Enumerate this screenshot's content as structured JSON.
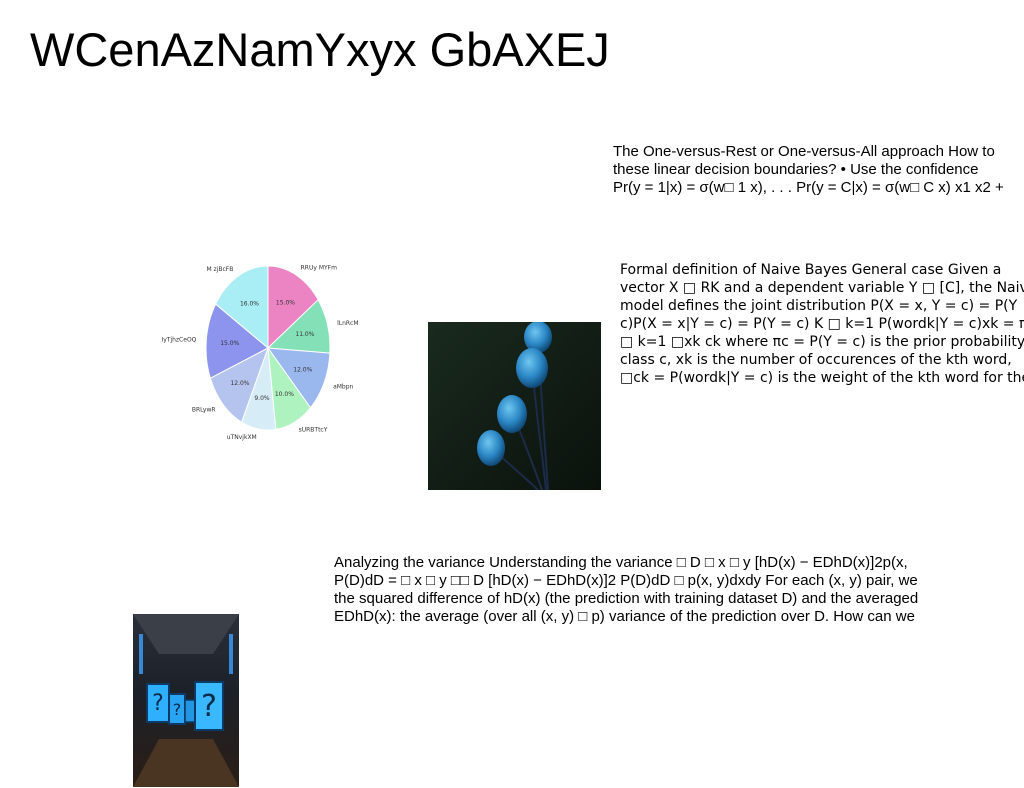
{
  "title": "WCenAzNamYxyx GbAXEJ",
  "paragraphs": {
    "ovr": "The One-versus-Rest or One-versus-All approach How to\nthese linear decision boundaries? • Use the confidence\nPr(y = 1|x) = σ(w□ 1 x), . . . Pr(y = C|x) = σ(w□ C x) x1 x2 +",
    "naive_bayes": "Formal definition of Naive Bayes General case Given a\nvector X □ RK and a dependent variable Y □ [C], the Naive\nmodel defines the joint distribution P(X = x, Y = c) = P(Y\nc)P(X = x|Y = c) = P(Y = c) K □ k=1 P(wordk|Y = c)xk = πc\n□ k=1 □xk ck where πc = P(Y = c) is the prior probability\nclass c, xk is the number of occurences of the kth word,\n□ck = P(wordk|Y = c) is the weight of the kth word for the",
    "variance": "Analyzing the variance Understanding the variance □ D □ x □ y [hD(x) − EDhD(x)]2p(x,\nP(D)dD = □ x □ y □□ D [hD(x) − EDhD(x)]2 P(D)dD □ p(x, y)dxdy For each (x, y) pair, we\nthe squared difference of hD(x) (the prediction with training dataset D) and the averaged\nEDhD(x): the average (over all (x, y) □ p) variance of the prediction over D. How can we"
  },
  "chart_data": {
    "type": "pie",
    "categories": [
      "RRUy MYFm",
      "lLnRcM",
      "aMbpn",
      "sURBTtcY",
      "uTNvjkXM",
      "BRLywR",
      "IyTjhzCeOQ",
      "M zjBcFB"
    ],
    "values": [
      15.0,
      11.0,
      12.0,
      10.0,
      9.0,
      12.0,
      15.0,
      16.0
    ],
    "value_labels": [
      "15.0%",
      "11.0%",
      "12.0%",
      "10.0%",
      "9.0%",
      "12.0%",
      "15.0%",
      "16.0%"
    ],
    "colors": [
      "#ec84c4",
      "#84e0b6",
      "#9ab8ee",
      "#aef2bf",
      "#d6ecf6",
      "#b4c4ee",
      "#8c94ee",
      "#a8eef4"
    ],
    "start": "top",
    "direction": "clockwise"
  },
  "images": {
    "photo1": "blue fuzzy spheres on stems against dark background",
    "photo2": "glowing blue question-mark blocks in a dark corridor"
  }
}
